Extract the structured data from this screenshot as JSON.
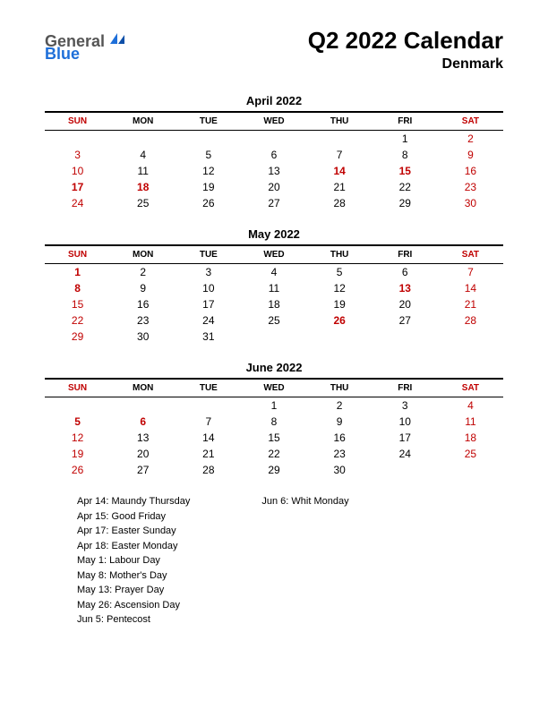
{
  "logo": {
    "part1": "General",
    "part2": "Blue"
  },
  "title": "Q2 2022 Calendar",
  "subtitle": "Denmark",
  "colors": {
    "red": "#c00000",
    "black": "#000000",
    "logo_gray": "#555555",
    "logo_blue": "#1e6fd9",
    "background": "#ffffff"
  },
  "day_headers": [
    "SUN",
    "MON",
    "TUE",
    "WED",
    "THU",
    "FRI",
    "SAT"
  ],
  "months": [
    {
      "title": "April 2022",
      "weeks": [
        [
          {
            "n": "",
            "c": "blk"
          },
          {
            "n": "",
            "c": "blk"
          },
          {
            "n": "",
            "c": "blk"
          },
          {
            "n": "",
            "c": "blk"
          },
          {
            "n": "",
            "c": "blk"
          },
          {
            "n": "1",
            "c": "blk"
          },
          {
            "n": "2",
            "c": "red"
          }
        ],
        [
          {
            "n": "3",
            "c": "red"
          },
          {
            "n": "4",
            "c": "blk"
          },
          {
            "n": "5",
            "c": "blk"
          },
          {
            "n": "6",
            "c": "blk"
          },
          {
            "n": "7",
            "c": "blk"
          },
          {
            "n": "8",
            "c": "blk"
          },
          {
            "n": "9",
            "c": "red"
          }
        ],
        [
          {
            "n": "10",
            "c": "red"
          },
          {
            "n": "11",
            "c": "blk"
          },
          {
            "n": "12",
            "c": "blk"
          },
          {
            "n": "13",
            "c": "blk"
          },
          {
            "n": "14",
            "c": "redbold"
          },
          {
            "n": "15",
            "c": "redbold"
          },
          {
            "n": "16",
            "c": "red"
          }
        ],
        [
          {
            "n": "17",
            "c": "redbold"
          },
          {
            "n": "18",
            "c": "redbold"
          },
          {
            "n": "19",
            "c": "blk"
          },
          {
            "n": "20",
            "c": "blk"
          },
          {
            "n": "21",
            "c": "blk"
          },
          {
            "n": "22",
            "c": "blk"
          },
          {
            "n": "23",
            "c": "red"
          }
        ],
        [
          {
            "n": "24",
            "c": "red"
          },
          {
            "n": "25",
            "c": "blk"
          },
          {
            "n": "26",
            "c": "blk"
          },
          {
            "n": "27",
            "c": "blk"
          },
          {
            "n": "28",
            "c": "blk"
          },
          {
            "n": "29",
            "c": "blk"
          },
          {
            "n": "30",
            "c": "red"
          }
        ]
      ]
    },
    {
      "title": "May 2022",
      "weeks": [
        [
          {
            "n": "1",
            "c": "redbold"
          },
          {
            "n": "2",
            "c": "blk"
          },
          {
            "n": "3",
            "c": "blk"
          },
          {
            "n": "4",
            "c": "blk"
          },
          {
            "n": "5",
            "c": "blk"
          },
          {
            "n": "6",
            "c": "blk"
          },
          {
            "n": "7",
            "c": "red"
          }
        ],
        [
          {
            "n": "8",
            "c": "redbold"
          },
          {
            "n": "9",
            "c": "blk"
          },
          {
            "n": "10",
            "c": "blk"
          },
          {
            "n": "11",
            "c": "blk"
          },
          {
            "n": "12",
            "c": "blk"
          },
          {
            "n": "13",
            "c": "redbold"
          },
          {
            "n": "14",
            "c": "red"
          }
        ],
        [
          {
            "n": "15",
            "c": "red"
          },
          {
            "n": "16",
            "c": "blk"
          },
          {
            "n": "17",
            "c": "blk"
          },
          {
            "n": "18",
            "c": "blk"
          },
          {
            "n": "19",
            "c": "blk"
          },
          {
            "n": "20",
            "c": "blk"
          },
          {
            "n": "21",
            "c": "red"
          }
        ],
        [
          {
            "n": "22",
            "c": "red"
          },
          {
            "n": "23",
            "c": "blk"
          },
          {
            "n": "24",
            "c": "blk"
          },
          {
            "n": "25",
            "c": "blk"
          },
          {
            "n": "26",
            "c": "redbold"
          },
          {
            "n": "27",
            "c": "blk"
          },
          {
            "n": "28",
            "c": "red"
          }
        ],
        [
          {
            "n": "29",
            "c": "red"
          },
          {
            "n": "30",
            "c": "blk"
          },
          {
            "n": "31",
            "c": "blk"
          },
          {
            "n": "",
            "c": "blk"
          },
          {
            "n": "",
            "c": "blk"
          },
          {
            "n": "",
            "c": "blk"
          },
          {
            "n": "",
            "c": "blk"
          }
        ]
      ]
    },
    {
      "title": "June 2022",
      "weeks": [
        [
          {
            "n": "",
            "c": "blk"
          },
          {
            "n": "",
            "c": "blk"
          },
          {
            "n": "",
            "c": "blk"
          },
          {
            "n": "1",
            "c": "blk"
          },
          {
            "n": "2",
            "c": "blk"
          },
          {
            "n": "3",
            "c": "blk"
          },
          {
            "n": "4",
            "c": "red"
          }
        ],
        [
          {
            "n": "5",
            "c": "redbold"
          },
          {
            "n": "6",
            "c": "redbold"
          },
          {
            "n": "7",
            "c": "blk"
          },
          {
            "n": "8",
            "c": "blk"
          },
          {
            "n": "9",
            "c": "blk"
          },
          {
            "n": "10",
            "c": "blk"
          },
          {
            "n": "11",
            "c": "red"
          }
        ],
        [
          {
            "n": "12",
            "c": "red"
          },
          {
            "n": "13",
            "c": "blk"
          },
          {
            "n": "14",
            "c": "blk"
          },
          {
            "n": "15",
            "c": "blk"
          },
          {
            "n": "16",
            "c": "blk"
          },
          {
            "n": "17",
            "c": "blk"
          },
          {
            "n": "18",
            "c": "red"
          }
        ],
        [
          {
            "n": "19",
            "c": "red"
          },
          {
            "n": "20",
            "c": "blk"
          },
          {
            "n": "21",
            "c": "blk"
          },
          {
            "n": "22",
            "c": "blk"
          },
          {
            "n": "23",
            "c": "blk"
          },
          {
            "n": "24",
            "c": "blk"
          },
          {
            "n": "25",
            "c": "red"
          }
        ],
        [
          {
            "n": "26",
            "c": "red"
          },
          {
            "n": "27",
            "c": "blk"
          },
          {
            "n": "28",
            "c": "blk"
          },
          {
            "n": "29",
            "c": "blk"
          },
          {
            "n": "30",
            "c": "blk"
          },
          {
            "n": "",
            "c": "blk"
          },
          {
            "n": "",
            "c": "blk"
          }
        ]
      ]
    }
  ],
  "holidays_left": [
    "Apr 14: Maundy Thursday",
    "Apr 15: Good Friday",
    "Apr 17: Easter Sunday",
    "Apr 18: Easter Monday",
    "May 1: Labour Day",
    "May 8: Mother's Day",
    "May 13: Prayer Day",
    "May 26: Ascension Day",
    "Jun 5: Pentecost"
  ],
  "holidays_right": [
    "Jun 6: Whit Monday"
  ]
}
